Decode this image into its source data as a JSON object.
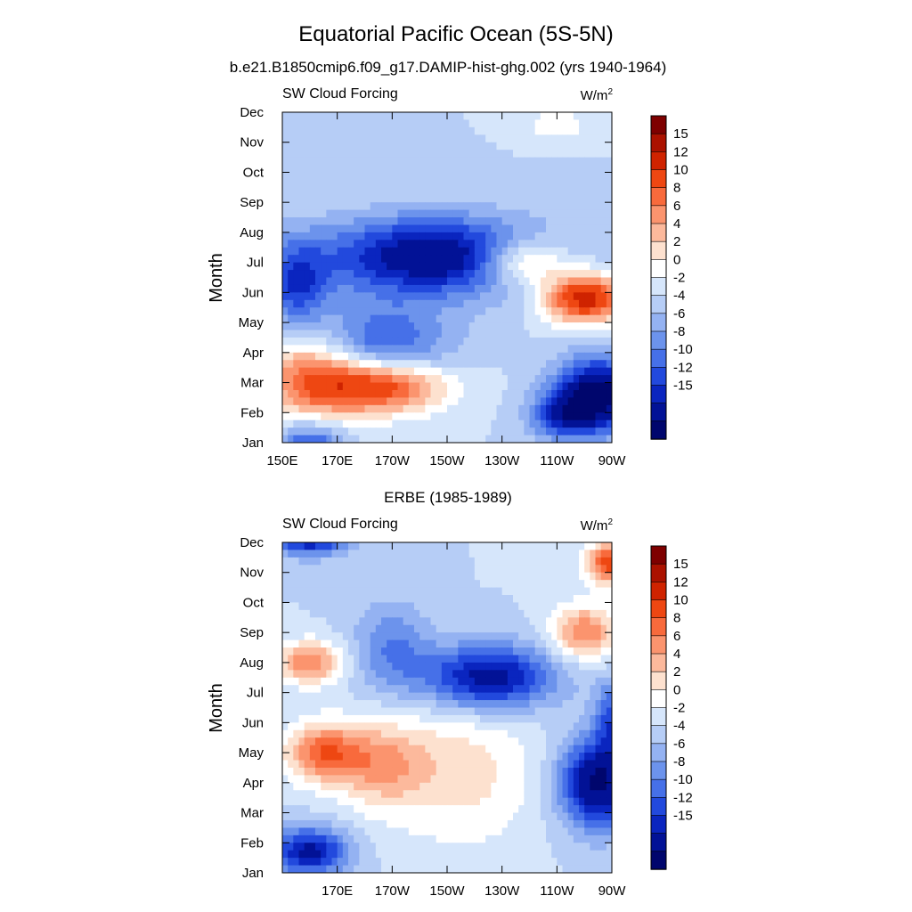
{
  "figure": {
    "title": "Equatorial Pacific Ocean (5S-5N)"
  },
  "colorbar": {
    "labels": [
      "15",
      "12",
      "10",
      "8",
      "6",
      "4",
      "2",
      "0",
      "-2",
      "-4",
      "-6",
      "-8",
      "-10",
      "-12",
      "-15"
    ],
    "levels": [
      15,
      12,
      10,
      8,
      6,
      4,
      2,
      0,
      -2,
      -4,
      -6,
      -8,
      -10,
      -12,
      -15
    ],
    "colors": [
      "#7e0000",
      "#ab1200",
      "#cf2300",
      "#ee4712",
      "#f86a3c",
      "#fb946e",
      "#fcb99c",
      "#fde1cf",
      "#ffffff",
      "#d6e6fb",
      "#b6cdf6",
      "#94b2f2",
      "#6c93ec",
      "#4670e8",
      "#2249dd",
      "#0a25bf",
      "#021296",
      "#00066d"
    ]
  },
  "chart_data": [
    {
      "type": "heatmap",
      "id": "model",
      "title": "b.e21.B1850cmip6.f09_g17.DAMIP-hist-ghg.002 (yrs 1940-1964)",
      "left_label": "SW Cloud Forcing",
      "units_base": "W/m",
      "units_exp": "2",
      "ylabel": "Month",
      "x_ticks": [
        "150E",
        "170E",
        "170W",
        "150W",
        "130W",
        "110W",
        "90W"
      ],
      "x_tick_values": [
        150,
        170,
        190,
        210,
        230,
        250,
        270
      ],
      "xlim": [
        150,
        270
      ],
      "y_ticks": [
        "Jan",
        "Feb",
        "Mar",
        "Apr",
        "May",
        "Jun",
        "Jul",
        "Aug",
        "Sep",
        "Oct",
        "Nov",
        "Dec"
      ],
      "features": [
        {
          "lon": 185,
          "m": 1.9,
          "sx": 24,
          "sy": 0.9,
          "a": 16
        },
        {
          "lon": 160,
          "m": 2.3,
          "sx": 18,
          "sy": 1.6,
          "a": 10
        },
        {
          "lon": 260,
          "m": 4.8,
          "sx": 14,
          "sy": 0.8,
          "a": 17
        },
        {
          "lon": 238,
          "m": 6.0,
          "sx": 16,
          "sy": 0.8,
          "a": 10
        },
        {
          "lon": 205,
          "m": 6.2,
          "sx": 40,
          "sy": 1.3,
          "a": -15
        },
        {
          "lon": 185,
          "m": 3.2,
          "sx": 26,
          "sy": 1.4,
          "a": -9
        },
        {
          "lon": 155,
          "m": 5.2,
          "sx": 12,
          "sy": 1.5,
          "a": -9
        },
        {
          "lon": 265,
          "m": 1.6,
          "sx": 15,
          "sy": 1.2,
          "a": -17
        },
        {
          "lon": 252,
          "m": 0.9,
          "sx": 12,
          "sy": 0.8,
          "a": -9
        },
        {
          "lon": 160,
          "m": -0.4,
          "sx": 12,
          "sy": 1.0,
          "a": -12
        },
        {
          "lon": 160,
          "m": 11.9,
          "sx": 18,
          "sy": 0.4,
          "a": -12
        },
        {
          "lon": 250,
          "m": 10.6,
          "sx": 10,
          "sy": 0.5,
          "a": 4
        }
      ]
    },
    {
      "type": "heatmap",
      "id": "obs",
      "title": "ERBE (1985-1989)",
      "left_label": "SW Cloud Forcing",
      "units_base": "W/m",
      "units_exp": "2",
      "ylabel": "Month",
      "x_ticks": [
        "170E",
        "170W",
        "150W",
        "130W",
        "110W",
        "90W"
      ],
      "x_tick_values": [
        170,
        190,
        210,
        230,
        250,
        270
      ],
      "xlim": [
        150,
        270
      ],
      "y_ticks": [
        "Jan",
        "Feb",
        "Mar",
        "Apr",
        "May",
        "Jun",
        "Jul",
        "Aug",
        "Sep",
        "Oct",
        "Nov",
        "Dec"
      ],
      "features": [
        {
          "lon": 165,
          "m": 4.0,
          "sx": 14,
          "sy": 1.0,
          "a": 11
        },
        {
          "lon": 186,
          "m": 3.6,
          "sx": 16,
          "sy": 1.4,
          "a": 7
        },
        {
          "lon": 215,
          "m": 3.4,
          "sx": 28,
          "sy": 2.5,
          "a": 5
        },
        {
          "lon": 260,
          "m": 8.0,
          "sx": 12,
          "sy": 0.9,
          "a": 10
        },
        {
          "lon": 270,
          "m": 10.3,
          "sx": 9,
          "sy": 0.7,
          "a": 14
        },
        {
          "lon": 160,
          "m": 7.0,
          "sx": 12,
          "sy": 0.7,
          "a": 10
        },
        {
          "lon": 225,
          "m": 6.5,
          "sx": 24,
          "sy": 1.1,
          "a": -14
        },
        {
          "lon": 190,
          "m": 7.5,
          "sx": 14,
          "sy": 1.5,
          "a": -6
        },
        {
          "lon": 160,
          "m": 11.2,
          "sx": 14,
          "sy": 0.6,
          "a": -14
        },
        {
          "lon": 265,
          "m": 3.0,
          "sx": 14,
          "sy": 1.5,
          "a": -16
        },
        {
          "lon": 160,
          "m": 0.7,
          "sx": 14,
          "sy": 0.8,
          "a": -13
        },
        {
          "lon": 270,
          "m": 5.2,
          "sx": 6,
          "sy": 1.2,
          "a": -8
        }
      ]
    }
  ]
}
